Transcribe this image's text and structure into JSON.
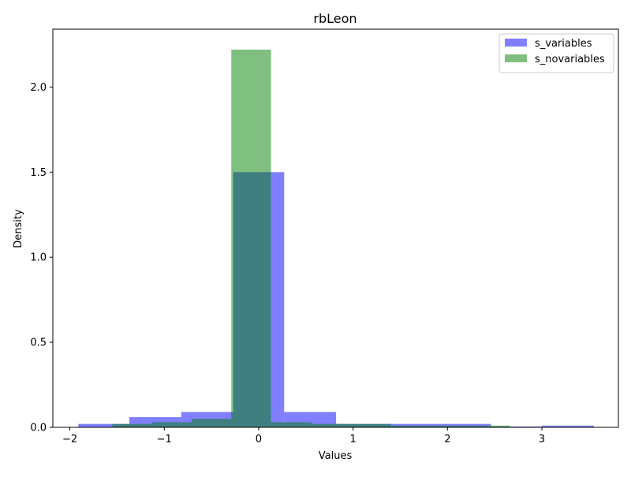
{
  "colors": {
    "s_variables": "#0000ff",
    "s_novariables": "#008000",
    "bar_alpha": 0.5
  },
  "chart_data": {
    "type": "bar",
    "subtype": "overlapping-histogram",
    "title": "rbLeon",
    "xlabel": "Values",
    "ylabel": "Density",
    "xlim": [
      -2.18,
      3.81
    ],
    "ylim": [
      0,
      2.34
    ],
    "grid": false,
    "legend_position": "top-right",
    "xticks": [
      {
        "value": -2,
        "label": "−2"
      },
      {
        "value": -1,
        "label": "−1"
      },
      {
        "value": 0,
        "label": "0"
      },
      {
        "value": 1,
        "label": "1"
      },
      {
        "value": 2,
        "label": "2"
      },
      {
        "value": 3,
        "label": "3"
      }
    ],
    "yticks": [
      {
        "value": 0,
        "label": "0.0"
      },
      {
        "value": 0.5,
        "label": "0.5"
      },
      {
        "value": 1.0,
        "label": "1.0"
      },
      {
        "value": 1.5,
        "label": "1.5"
      },
      {
        "value": 2.0,
        "label": "2.0"
      }
    ],
    "series": [
      {
        "name": "s_variables",
        "color_key": "s_variables",
        "bin_edges": [
          -1.91,
          -1.37,
          -0.82,
          -0.27,
          0.27,
          0.82,
          1.37,
          1.91,
          2.46,
          3.0,
          3.55
        ],
        "values": [
          0.02,
          0.06,
          0.09,
          1.5,
          0.09,
          0.02,
          0.02,
          0.02,
          0.005,
          0.01
        ]
      },
      {
        "name": "s_novariables",
        "color_key": "s_novariables",
        "bin_edges": [
          -1.55,
          -1.13,
          -0.71,
          -0.29,
          0.13,
          0.56,
          0.98,
          1.4,
          1.82,
          2.24,
          2.66
        ],
        "values": [
          0.02,
          0.03,
          0.05,
          2.22,
          0.03,
          0.02,
          0.02,
          0.01,
          0.01,
          0.01
        ]
      }
    ]
  }
}
